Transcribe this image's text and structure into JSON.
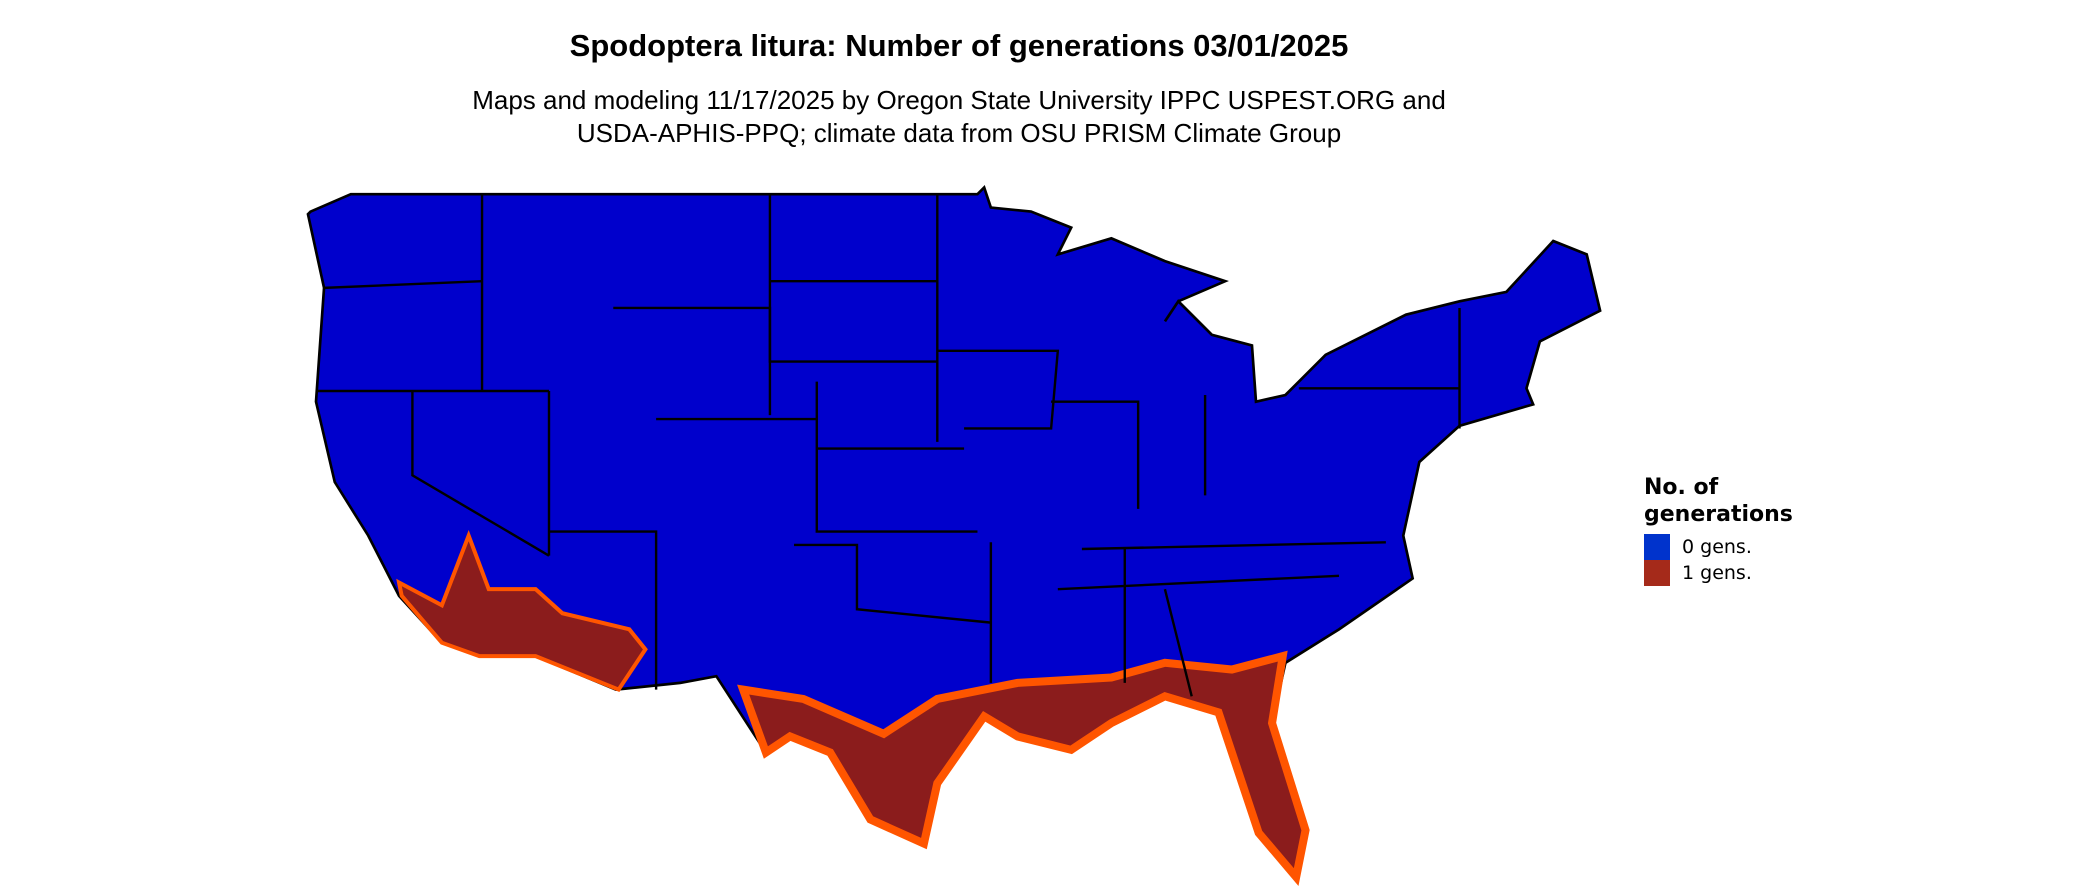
{
  "title": "Spodoptera litura: Number of generations 03/01/2025",
  "subtitle_line1": "Maps and modeling 11/17/2025 by Oregon State University IPPC USPEST.ORG and",
  "subtitle_line2": "USDA-APHIS-PPQ; climate data from OSU PRISM Climate Group",
  "map": {
    "region": "Contiguous United States",
    "colors": {
      "zero_gens_map": "#0000cc",
      "one_gen_core": "#8b1c1c",
      "one_gen_edge": "#ff5500",
      "borders": "#000000"
    }
  },
  "legend": {
    "title": "No. of generations",
    "title_line1": "No. of",
    "title_line2": "generations",
    "items": [
      {
        "label": "0 gens.",
        "color": "#0033cc"
      },
      {
        "label": "1 gens.",
        "color": "#a52a1a"
      }
    ]
  }
}
